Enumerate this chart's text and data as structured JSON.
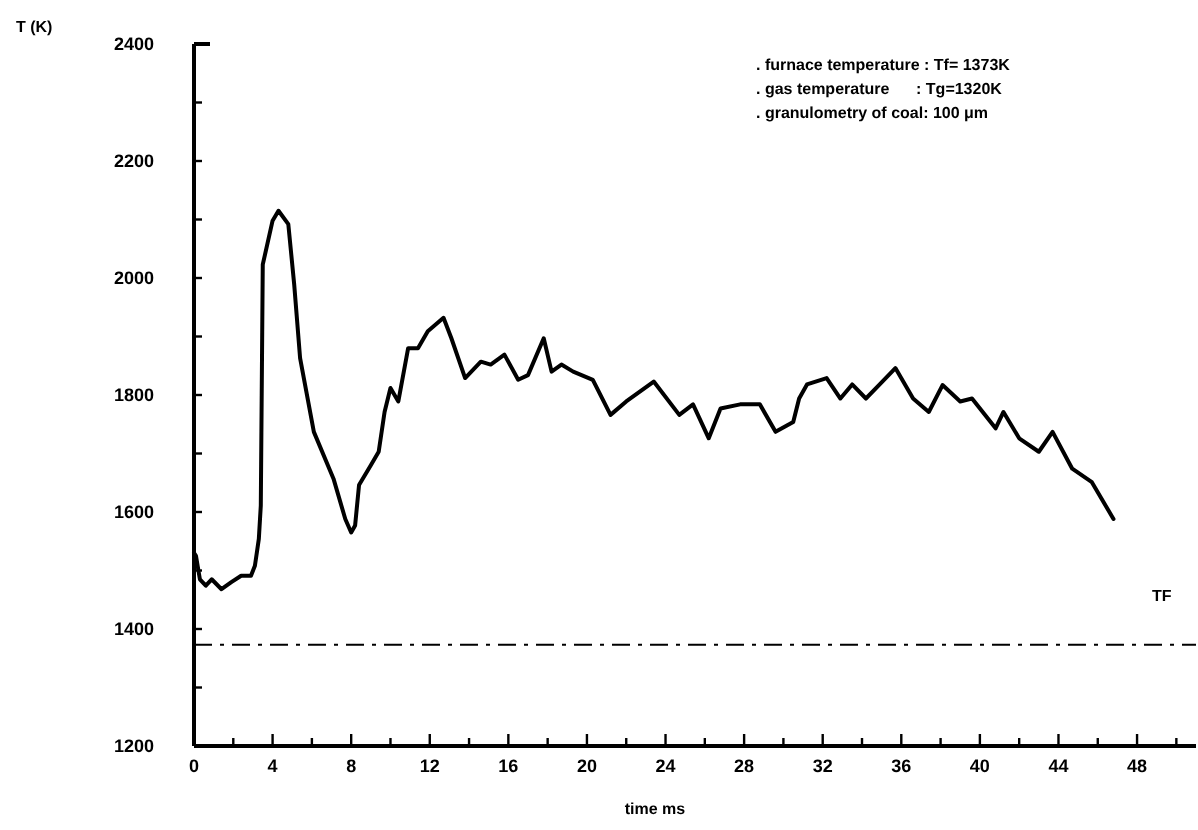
{
  "chart_data": {
    "type": "line",
    "ylabel": "T (K)",
    "xlabel": "time ms",
    "annotations": [
      ". furnace temperature : Tf= 1373K",
      ". gas temperature      : Tg=1320K",
      ". granulometry of coal: 100 μm"
    ],
    "xlim": [
      0,
      51
    ],
    "ylim": [
      1200,
      2400
    ],
    "xticks": [
      0,
      {
        "value": 2,
        "label": null
      },
      4,
      {
        "value": 6,
        "label": null
      },
      8,
      {
        "value": 10,
        "label": null
      },
      12,
      {
        "value": 14,
        "label": null
      },
      16,
      {
        "value": 18,
        "label": null
      },
      20,
      {
        "value": 22,
        "label": null
      },
      24,
      {
        "value": 26,
        "label": null
      },
      28,
      {
        "value": 30,
        "label": null
      },
      32,
      {
        "value": 34,
        "label": null
      },
      36,
      {
        "value": 38,
        "label": null
      },
      40,
      {
        "value": 42,
        "label": null
      },
      44,
      {
        "value": 46,
        "label": null
      },
      48,
      {
        "value": 50,
        "label": null
      }
    ],
    "yticks": [
      1200,
      {
        "value": 1300,
        "label": null
      },
      1400,
      {
        "value": 1500,
        "label": null
      },
      1600,
      {
        "value": 1700,
        "label": null
      },
      1800,
      {
        "value": 1900,
        "label": null
      },
      2000,
      {
        "value": 2100,
        "label": null
      },
      2200,
      {
        "value": 2300,
        "label": null
      },
      2400
    ],
    "grid": false,
    "marker": "none",
    "line_style": "solid",
    "ref_lines": [
      {
        "axis": "y",
        "value": 1373,
        "label": "TF",
        "line_style": "dashed",
        "color": "#000000"
      }
    ],
    "series": [
      {
        "color": "#000000",
        "x": [
          0,
          0.1,
          0.3,
          0.6,
          0.9,
          1.4,
          1.9,
          2.4,
          2.9,
          3.1,
          3.3,
          3.4,
          3.5,
          4.0,
          4.3,
          4.8,
          5.1,
          5.4,
          6.1,
          7.1,
          7.7,
          8.0,
          8.2,
          8.4,
          9.0,
          9.4,
          9.7,
          10.0,
          10.4,
          10.9,
          11.4,
          11.9,
          12.7,
          13.1,
          13.8,
          14.6,
          15.1,
          15.8,
          16.5,
          17.0,
          17.8,
          18.2,
          18.7,
          19.3,
          20.3,
          21.2,
          22.0,
          23.4,
          24.7,
          25.4,
          26.2,
          26.8,
          27.8,
          28.8,
          29.6,
          30.5,
          30.8,
          31.2,
          32.2,
          32.9,
          33.5,
          34.2,
          34.9,
          35.7,
          36.6,
          37.4,
          38.1,
          39.0,
          39.6,
          40.8,
          41.2,
          42.0,
          43.0,
          43.7,
          44.7,
          45.7,
          46.8
        ],
        "values": [
          1530,
          1525,
          1485,
          1474,
          1485,
          1468,
          1480,
          1491,
          1491,
          1508,
          1554,
          1611,
          2023,
          2098,
          2115,
          2092,
          1989,
          1863,
          1737,
          1657,
          1588,
          1565,
          1577,
          1646,
          1680,
          1703,
          1771,
          1812,
          1789,
          1880,
          1880,
          1909,
          1932,
          1897,
          1829,
          1857,
          1852,
          1869,
          1826,
          1834,
          1897,
          1840,
          1852,
          1840,
          1826,
          1766,
          1789,
          1823,
          1766,
          1784,
          1726,
          1777,
          1784,
          1784,
          1737,
          1754,
          1794,
          1818,
          1829,
          1794,
          1818,
          1794,
          1818,
          1846,
          1794,
          1771,
          1817,
          1789,
          1794,
          1743,
          1771,
          1726,
          1703,
          1737,
          1674,
          1651,
          1588
        ]
      }
    ]
  }
}
